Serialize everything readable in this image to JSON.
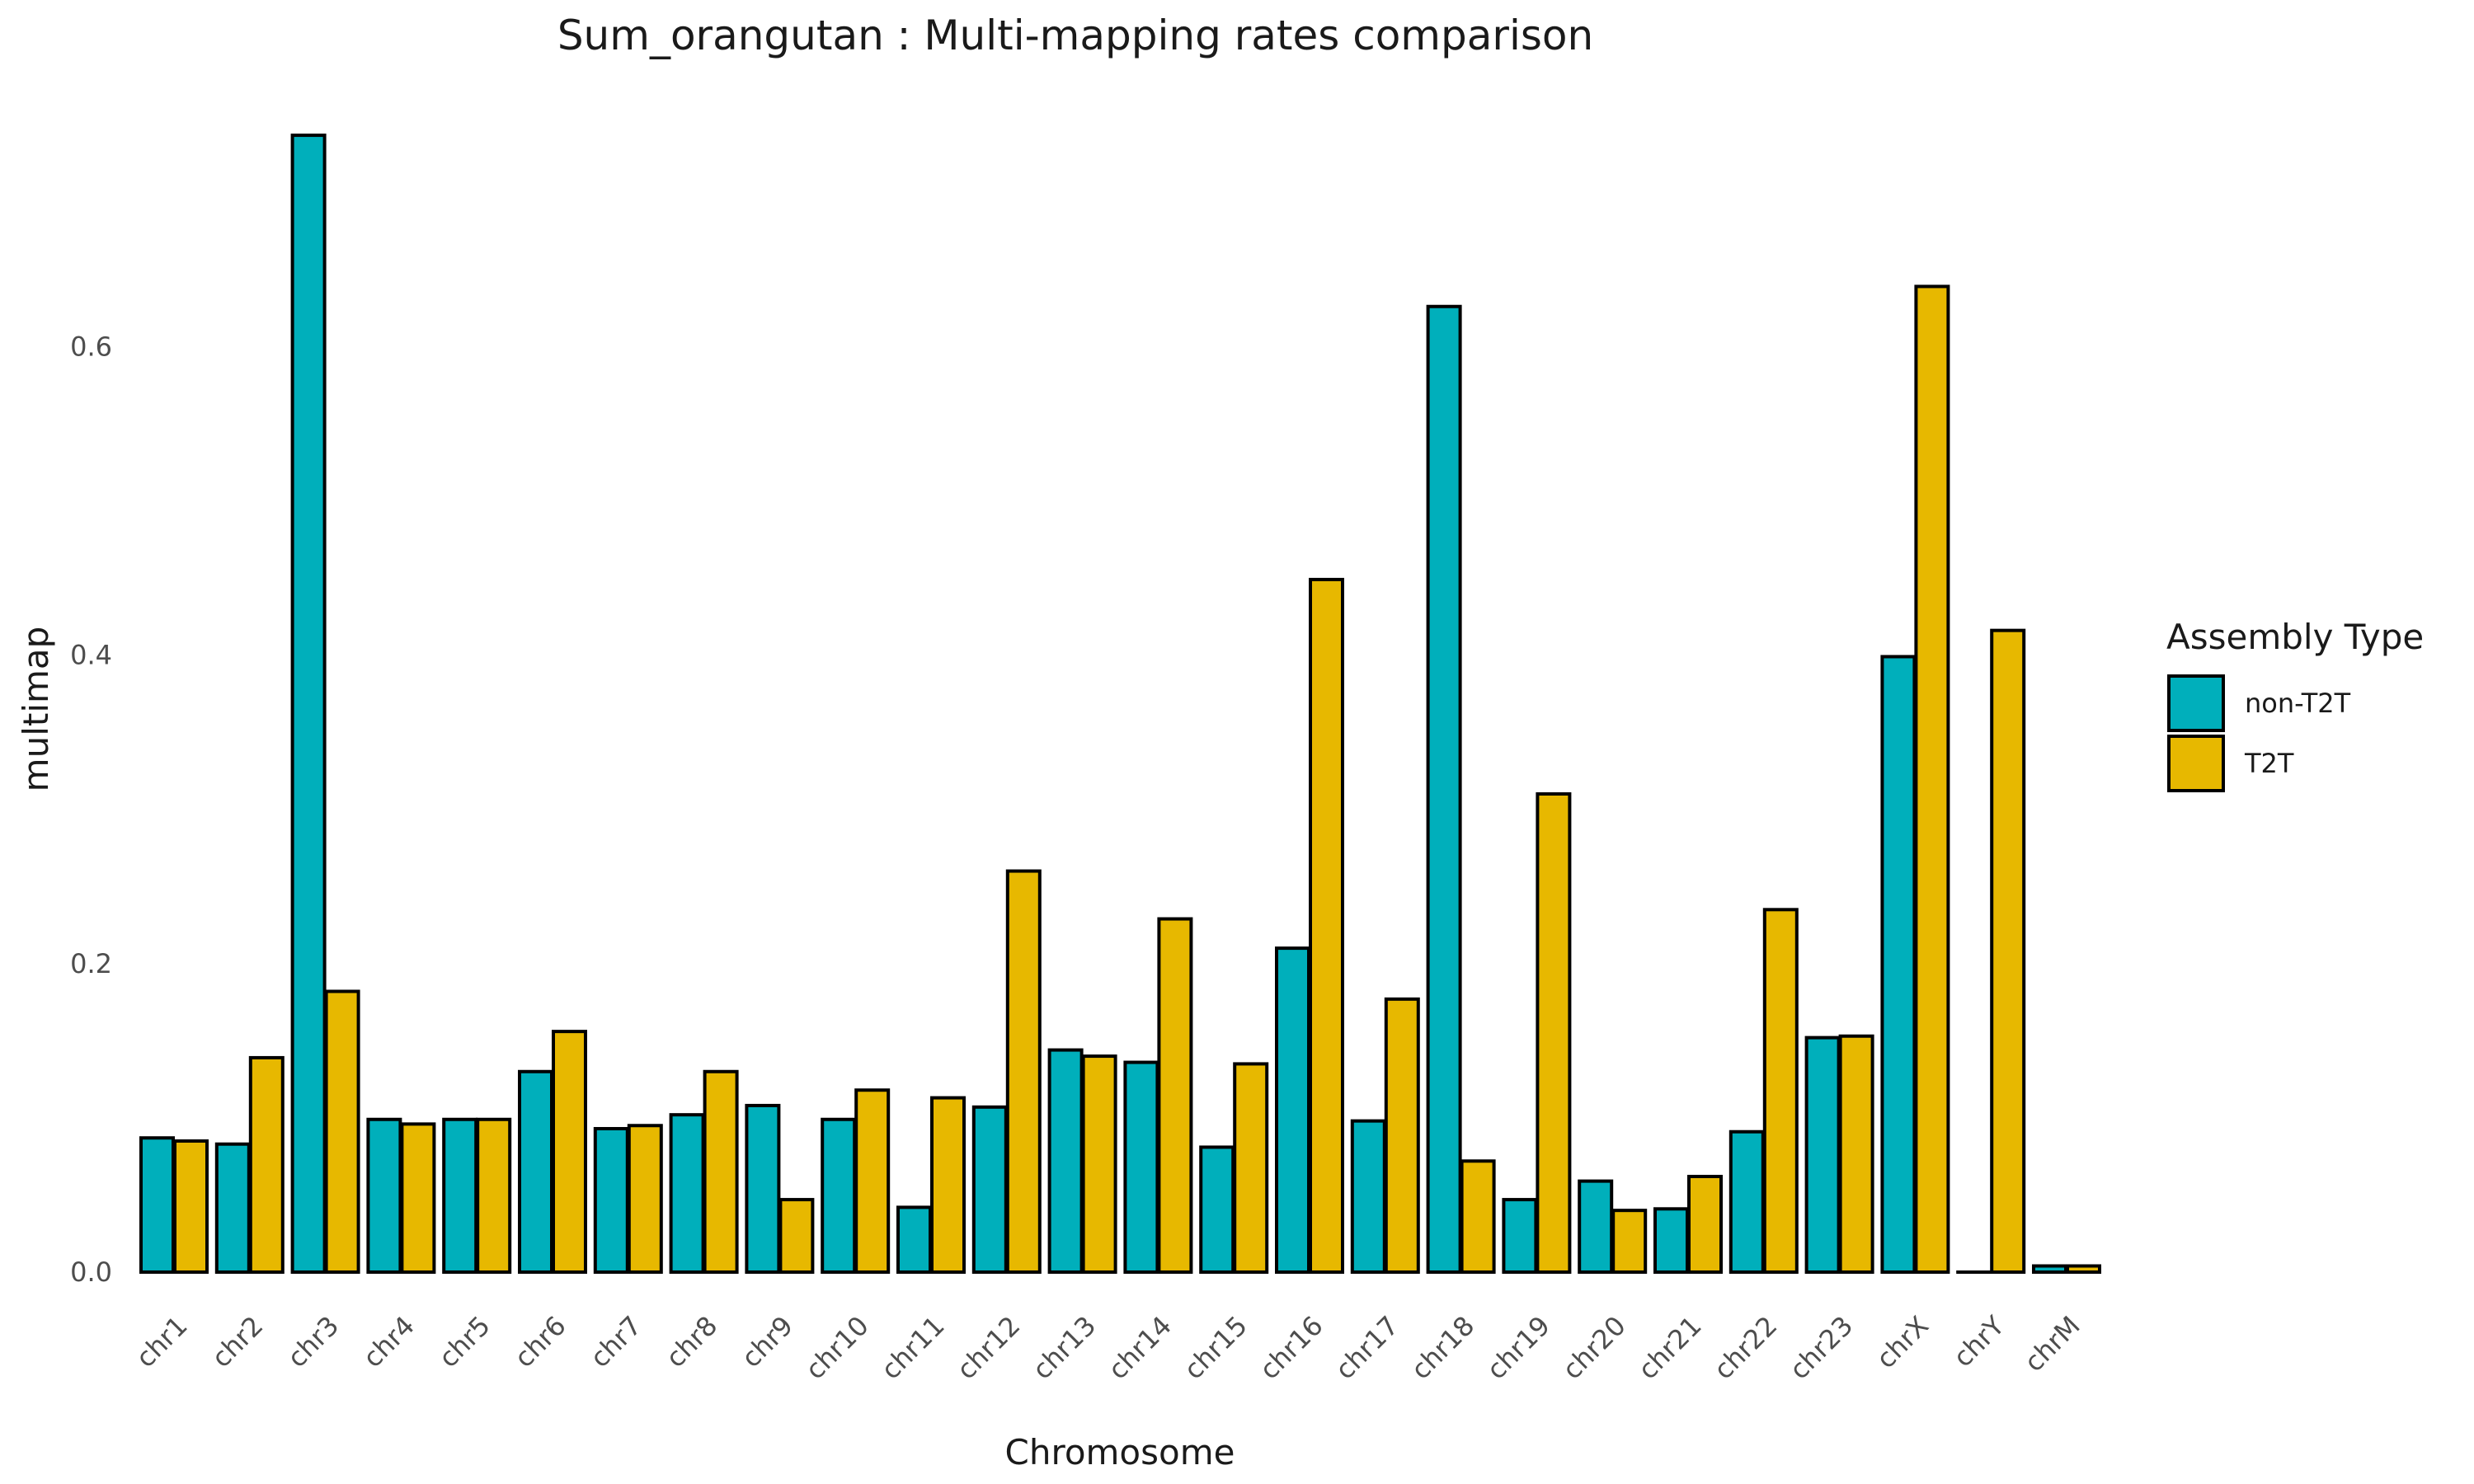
{
  "chart_data": {
    "type": "bar",
    "title": "Sum_orangutan : Multi-mapping rates comparison",
    "xlabel": "Chromosome",
    "ylabel": "multimap",
    "ylim": [
      0,
      0.76
    ],
    "yticks": [
      "0.0",
      "0.2",
      "0.4",
      "0.6"
    ],
    "grid": false,
    "legend_position": "right",
    "legend_title": "Assembly Type",
    "categories": [
      "chr1",
      "chr2",
      "chr3",
      "chr4",
      "chr5",
      "chr6",
      "chr7",
      "chr8",
      "chr9",
      "chr10",
      "chr11",
      "chr12",
      "chr13",
      "chr14",
      "chr15",
      "chr16",
      "chr17",
      "chr18",
      "chr19",
      "chr20",
      "chr21",
      "chr22",
      "chr23",
      "chrX",
      "chrY",
      "chrM"
    ],
    "series": [
      {
        "name": "non-T2T",
        "color": "#00AFBB",
        "values": [
          0.087,
          0.083,
          0.737,
          0.099,
          0.099,
          0.13,
          0.093,
          0.102,
          0.108,
          0.099,
          0.042,
          0.107,
          0.144,
          0.136,
          0.081,
          0.21,
          0.098,
          0.626,
          0.047,
          0.059,
          0.041,
          0.091,
          0.152,
          0.399,
          0.0,
          0.004
        ]
      },
      {
        "name": "T2T",
        "color": "#E7B800",
        "values": [
          0.085,
          0.139,
          0.182,
          0.096,
          0.099,
          0.156,
          0.095,
          0.13,
          0.047,
          0.118,
          0.113,
          0.26,
          0.14,
          0.229,
          0.135,
          0.449,
          0.177,
          0.072,
          0.31,
          0.04,
          0.062,
          0.235,
          0.153,
          0.639,
          0.416,
          0.004
        ]
      }
    ]
  }
}
